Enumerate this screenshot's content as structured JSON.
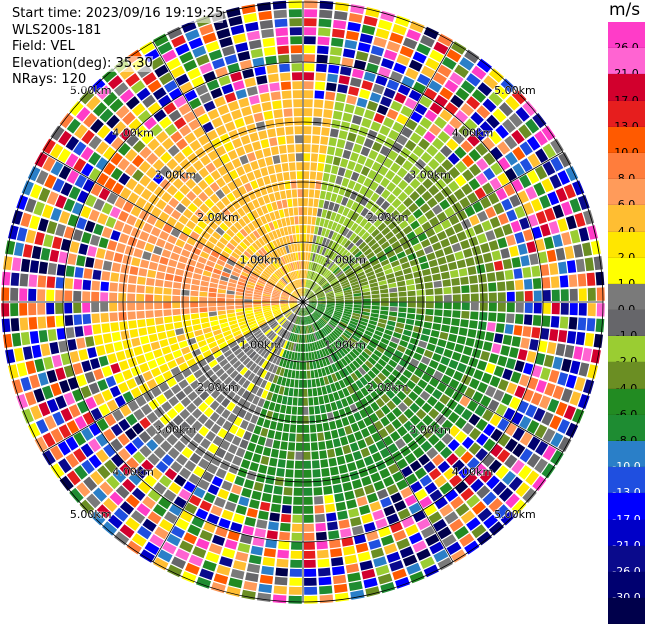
{
  "header": {
    "start_time": "Start time: 2023/09/16 19:19:25",
    "instrument": "WLS200s-181",
    "field": "Field: VEL",
    "elevation": "Elevation(deg): 35.30",
    "nrays": "NRays: 120"
  },
  "colorbar": {
    "unit": "m/s",
    "colors": [
      "#ff3cc8",
      "#ff64d2",
      "#d2002d",
      "#e61e1e",
      "#ff5a00",
      "#ff7d3c",
      "#ff9b5a",
      "#ffbe32",
      "#ffe600",
      "#ffff00",
      "#7a7a7a",
      "#66666a",
      "#9acd32",
      "#6b8e23",
      "#228b22",
      "#1e8c32",
      "#2a7fc8",
      "#1f4fe0",
      "#0000ff",
      "#0000c8",
      "#0a0a8c",
      "#000070",
      "#00004b"
    ],
    "labels": [
      "26.0",
      "21.0",
      "17.0",
      "13.0",
      "10.0",
      "8.0",
      "6.0",
      "4.0",
      "2.0",
      "1.0",
      "0.0",
      "-1.0",
      "-2.0",
      "-4.0",
      "-6.0",
      "-8.0",
      "-10.0",
      "-13.0",
      "-17.0",
      "-21.0",
      "-26.0",
      "-30.0"
    ]
  },
  "range_rings": {
    "labels": [
      "1.00km",
      "2.00km",
      "3.00km",
      "4.00km",
      "5.00km"
    ]
  },
  "chart_data": {
    "type": "heatmap",
    "projection": "polar PPI",
    "field": "VEL",
    "units": "m/s",
    "rays": 120,
    "range_ring_km": [
      1,
      2,
      3,
      4,
      5
    ],
    "color_range": [
      -30.0,
      26.0
    ]
  }
}
